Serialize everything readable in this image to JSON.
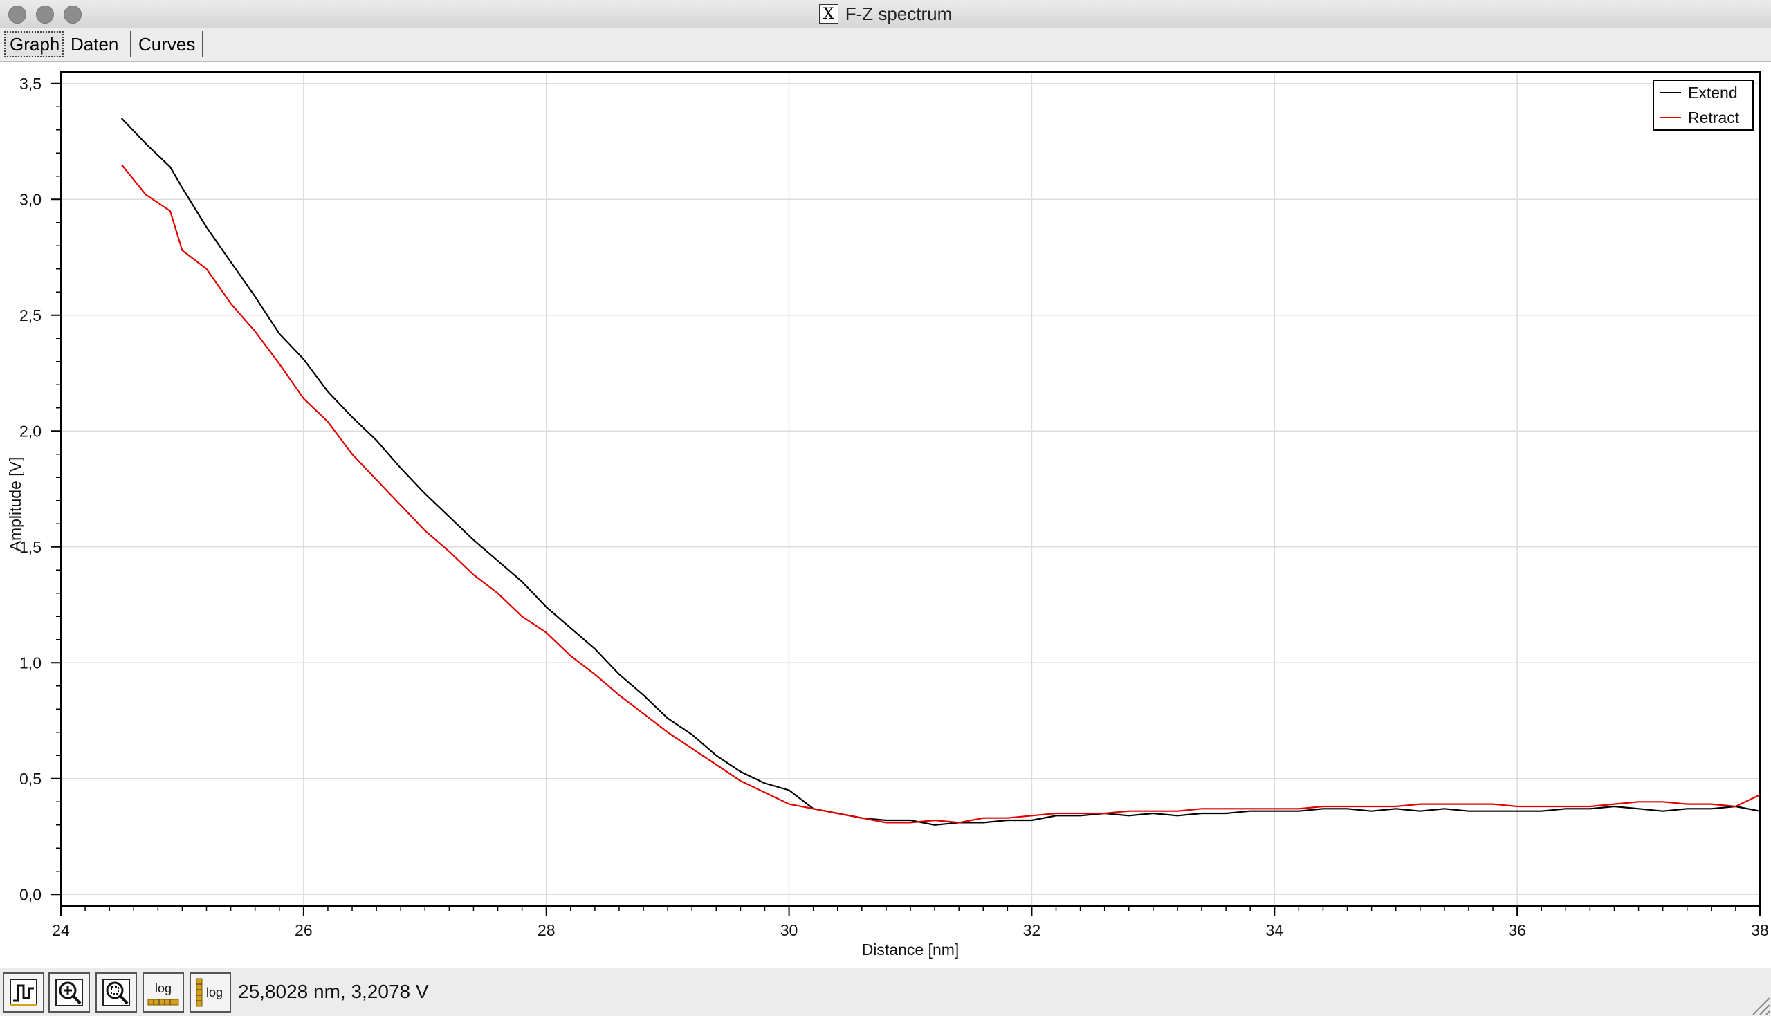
{
  "window": {
    "title": "F-Z spectrum"
  },
  "tabs": [
    {
      "label": "Graph",
      "active": true
    },
    {
      "label": "Daten",
      "active": false
    },
    {
      "label": "Curves",
      "active": false
    }
  ],
  "toolbar": {
    "buttons": [
      {
        "icon": "autoscale-icon"
      },
      {
        "icon": "zoom-in-icon"
      },
      {
        "icon": "zoom-fit-icon"
      },
      {
        "icon": "log-x-icon",
        "label": "log"
      },
      {
        "icon": "log-y-icon",
        "label": "log"
      }
    ],
    "status": "25,8028 nm, 3,2078 V"
  },
  "chart_data": {
    "type": "line",
    "title": "",
    "xlabel": "Distance [nm]",
    "ylabel": "Amplitude [V]",
    "xlim": [
      24,
      38
    ],
    "ylim": [
      -0.05,
      3.55
    ],
    "xticks": [
      "24",
      "26",
      "28",
      "30",
      "32",
      "34",
      "36",
      "38"
    ],
    "yticks": [
      "0,0",
      "0,5",
      "1,0",
      "1,5",
      "2,0",
      "2,5",
      "3,0",
      "3,5"
    ],
    "grid": true,
    "legend_position": "top-right",
    "series": [
      {
        "name": "Extend",
        "color": "#000000",
        "x": [
          24.5,
          24.7,
          24.9,
          25.0,
          25.2,
          25.4,
          25.6,
          25.8,
          26.0,
          26.2,
          26.4,
          26.6,
          26.8,
          27.0,
          27.2,
          27.4,
          27.6,
          27.8,
          28.0,
          28.2,
          28.4,
          28.6,
          28.8,
          29.0,
          29.2,
          29.4,
          29.6,
          29.8,
          30.0,
          30.2,
          30.4,
          30.6,
          30.8,
          31.0,
          31.2,
          31.4,
          31.6,
          31.8,
          32.0,
          32.2,
          32.4,
          32.6,
          32.8,
          33.0,
          33.2,
          33.4,
          33.6,
          33.8,
          34.0,
          34.2,
          34.4,
          34.6,
          34.8,
          35.0,
          35.2,
          35.4,
          35.6,
          35.8,
          36.0,
          36.2,
          36.4,
          36.6,
          36.8,
          37.0,
          37.2,
          37.4,
          37.6,
          37.8,
          38.0
        ],
        "y": [
          3.35,
          3.24,
          3.14,
          3.05,
          2.88,
          2.73,
          2.58,
          2.42,
          2.31,
          2.17,
          2.06,
          1.96,
          1.84,
          1.73,
          1.63,
          1.53,
          1.44,
          1.35,
          1.24,
          1.15,
          1.06,
          0.95,
          0.86,
          0.76,
          0.69,
          0.6,
          0.53,
          0.48,
          0.45,
          0.37,
          0.35,
          0.33,
          0.32,
          0.32,
          0.3,
          0.31,
          0.31,
          0.32,
          0.32,
          0.34,
          0.34,
          0.35,
          0.34,
          0.35,
          0.34,
          0.35,
          0.35,
          0.36,
          0.36,
          0.36,
          0.37,
          0.37,
          0.36,
          0.37,
          0.36,
          0.37,
          0.36,
          0.36,
          0.36,
          0.36,
          0.37,
          0.37,
          0.38,
          0.37,
          0.36,
          0.37,
          0.37,
          0.38,
          0.36
        ]
      },
      {
        "name": "Retract",
        "color": "#e00000",
        "x": [
          24.5,
          24.7,
          24.9,
          25.0,
          25.2,
          25.4,
          25.6,
          25.8,
          26.0,
          26.2,
          26.4,
          26.6,
          26.8,
          27.0,
          27.2,
          27.4,
          27.6,
          27.8,
          28.0,
          28.2,
          28.4,
          28.6,
          28.8,
          29.0,
          29.2,
          29.4,
          29.6,
          29.8,
          30.0,
          30.2,
          30.4,
          30.6,
          30.8,
          31.0,
          31.2,
          31.4,
          31.6,
          31.8,
          32.0,
          32.2,
          32.4,
          32.6,
          32.8,
          33.0,
          33.2,
          33.4,
          33.6,
          33.8,
          34.0,
          34.2,
          34.4,
          34.6,
          34.8,
          35.0,
          35.2,
          35.4,
          35.6,
          35.8,
          36.0,
          36.2,
          36.4,
          36.6,
          36.8,
          37.0,
          37.2,
          37.4,
          37.6,
          37.8,
          38.0
        ],
        "y": [
          3.15,
          3.02,
          2.95,
          2.78,
          2.7,
          2.55,
          2.43,
          2.29,
          2.14,
          2.04,
          1.9,
          1.79,
          1.68,
          1.57,
          1.48,
          1.38,
          1.3,
          1.2,
          1.13,
          1.03,
          0.95,
          0.86,
          0.78,
          0.7,
          0.63,
          0.56,
          0.49,
          0.44,
          0.39,
          0.37,
          0.35,
          0.33,
          0.31,
          0.31,
          0.32,
          0.31,
          0.33,
          0.33,
          0.34,
          0.35,
          0.35,
          0.35,
          0.36,
          0.36,
          0.36,
          0.37,
          0.37,
          0.37,
          0.37,
          0.37,
          0.38,
          0.38,
          0.38,
          0.38,
          0.39,
          0.39,
          0.39,
          0.39,
          0.38,
          0.38,
          0.38,
          0.38,
          0.39,
          0.4,
          0.4,
          0.39,
          0.39,
          0.38,
          0.43
        ]
      }
    ]
  }
}
